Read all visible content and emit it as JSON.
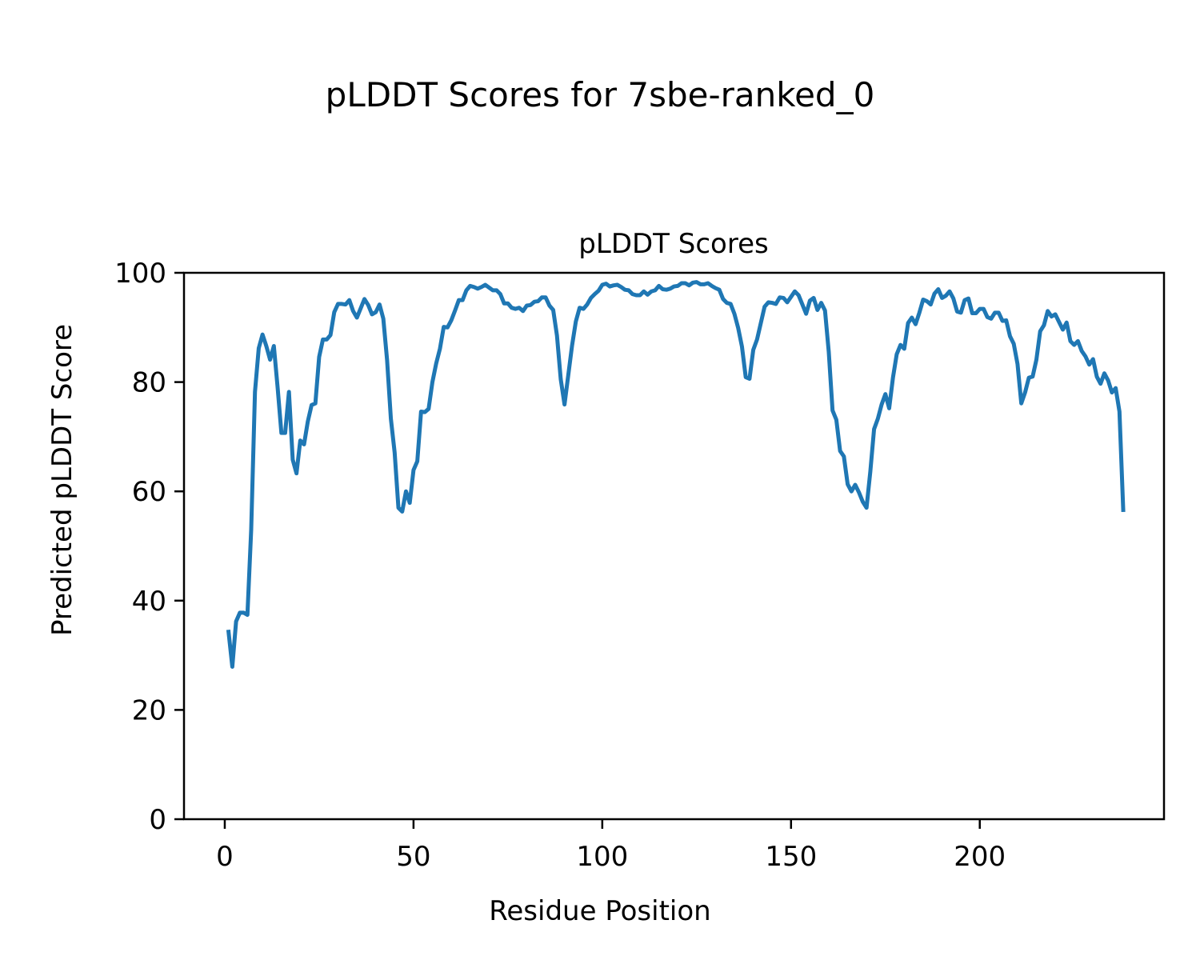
{
  "figure": {
    "suptitle": "pLDDT Scores for 7sbe-ranked_0"
  },
  "chart_data": {
    "type": "line",
    "title": "pLDDT Scores",
    "xlabel": "Residue Position",
    "ylabel": "Predicted pLDDT Score",
    "xlim": [
      -10.8,
      248.8
    ],
    "ylim": [
      0,
      100
    ],
    "xticks": [
      0,
      50,
      100,
      150,
      200
    ],
    "yticks": [
      0,
      20,
      40,
      60,
      80,
      100
    ],
    "grid": false,
    "legend": "none",
    "series": [
      {
        "color": "#1f77b4",
        "x_start": 1,
        "values": [
          34.3,
          27.9,
          36.2,
          37.8,
          37.8,
          37.4,
          53.0,
          78.2,
          86.2,
          88.7,
          86.6,
          84.1,
          86.6,
          79.0,
          70.7,
          70.7,
          78.2,
          65.8,
          63.3,
          69.3,
          68.6,
          72.8,
          75.8,
          76.1,
          84.6,
          87.8,
          87.8,
          88.6,
          92.8,
          94.3,
          94.3,
          94.2,
          95.0,
          93.0,
          91.8,
          93.5,
          95.2,
          94.1,
          92.4,
          92.8,
          94.2,
          91.6,
          84.0,
          73.3,
          67.1,
          57.0,
          56.3,
          60.0,
          57.9,
          63.9,
          65.5,
          74.6,
          74.5,
          75.1,
          80.0,
          83.4,
          86.1,
          90.1,
          90.0,
          91.3,
          93.1,
          95.0,
          95.0,
          96.8,
          97.6,
          97.4,
          97.1,
          97.4,
          97.8,
          97.3,
          96.8,
          96.8,
          96.1,
          94.4,
          94.4,
          93.6,
          93.4,
          93.6,
          93.0,
          94.0,
          94.1,
          94.7,
          94.8,
          95.5,
          95.5,
          94.0,
          93.2,
          88.5,
          80.5,
          75.9,
          81.3,
          86.7,
          91.1,
          93.6,
          93.4,
          94.2,
          95.4,
          96.1,
          96.7,
          97.8,
          98.0,
          97.5,
          97.7,
          97.8,
          97.4,
          96.9,
          96.8,
          96.1,
          95.9,
          95.9,
          96.6,
          96.0,
          96.6,
          96.8,
          97.6,
          97.0,
          96.9,
          97.1,
          97.5,
          97.6,
          98.1,
          98.1,
          97.7,
          98.2,
          98.3,
          97.9,
          97.9,
          98.1,
          97.6,
          97.2,
          96.9,
          95.2,
          94.5,
          94.3,
          92.5,
          89.9,
          86.5,
          80.9,
          80.6,
          85.9,
          87.8,
          90.8,
          93.8,
          94.6,
          94.5,
          94.3,
          95.5,
          95.4,
          94.6,
          95.6,
          96.6,
          95.9,
          94.2,
          92.5,
          94.9,
          95.4,
          93.2,
          94.5,
          93.1,
          85.5,
          74.8,
          73.1,
          67.4,
          66.4,
          61.3,
          60.0,
          61.2,
          59.8,
          58.1,
          57.0,
          63.6,
          71.4,
          73.3,
          75.9,
          77.8,
          75.2,
          80.8,
          85.1,
          86.8,
          86.1,
          90.8,
          91.8,
          90.6,
          92.7,
          95.1,
          94.8,
          94.2,
          96.2,
          97.0,
          95.4,
          95.8,
          96.6,
          95.3,
          92.9,
          92.7,
          95.0,
          95.3,
          92.6,
          92.6,
          93.4,
          93.4,
          91.9,
          91.6,
          92.7,
          92.7,
          91.2,
          91.3,
          88.4,
          87.0,
          83.3,
          76.1,
          78.1,
          80.8,
          81.0,
          84.1,
          89.3,
          90.4,
          93.0,
          92.0,
          92.4,
          91.0,
          89.6,
          90.9,
          87.5,
          86.8,
          87.5,
          85.7,
          84.7,
          83.2,
          84.2,
          81.0,
          79.7,
          81.6,
          80.3,
          78.1,
          78.9,
          74.6,
          56.6
        ]
      }
    ]
  }
}
